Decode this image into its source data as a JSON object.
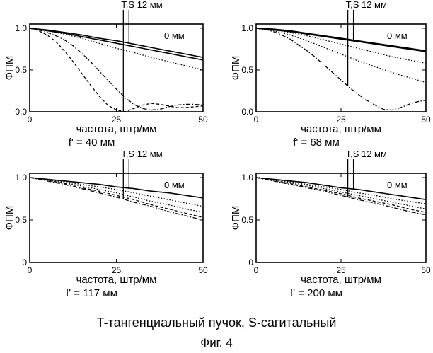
{
  "caption": {
    "legend_text": "T-тангенциальный пучок, S-сагитальный",
    "figure_label": "Фиг. 4"
  },
  "colors": {
    "ink": "#000000",
    "background": "#ffffff"
  },
  "chart_data": [
    {
      "type": "line",
      "focal_label": "f' = 40 мм",
      "xlabel": "частота, штр/мм",
      "ylabel": "ФПМ",
      "xlim": [
        0,
        50
      ],
      "ylim": [
        0,
        1.05
      ],
      "x_ticks": [
        "0",
        "25",
        "50"
      ],
      "y_ticks": [
        "0.0",
        "0.5",
        "1.0"
      ],
      "marker_x": 27,
      "marker_label": "T,S 12 мм",
      "curve_label": "0 мм",
      "grid": false,
      "series": [
        {
          "style": "solid",
          "x": [
            0,
            5,
            10,
            15,
            20,
            25,
            30,
            35,
            40,
            45,
            50
          ],
          "y": [
            1.0,
            0.98,
            0.95,
            0.92,
            0.88,
            0.85,
            0.81,
            0.77,
            0.73,
            0.69,
            0.65
          ]
        },
        {
          "style": "solid",
          "x": [
            0,
            5,
            10,
            15,
            20,
            25,
            30,
            35,
            40,
            45,
            50
          ],
          "y": [
            1.0,
            0.97,
            0.94,
            0.9,
            0.86,
            0.82,
            0.78,
            0.74,
            0.7,
            0.66,
            0.62
          ]
        },
        {
          "style": "dotted",
          "x": [
            0,
            5,
            10,
            15,
            20,
            25,
            30,
            35,
            40,
            45,
            50
          ],
          "y": [
            1.0,
            0.97,
            0.93,
            0.88,
            0.82,
            0.76,
            0.71,
            0.65,
            0.6,
            0.55,
            0.5
          ]
        },
        {
          "style": "dashdot",
          "x": [
            0,
            2.5,
            5,
            7.5,
            10,
            12.5,
            15,
            17.5,
            20,
            22.5,
            25,
            27.5,
            30,
            32.5,
            35,
            37.5,
            40,
            42.5,
            45,
            47.5,
            50
          ],
          "y": [
            1.0,
            0.98,
            0.95,
            0.91,
            0.86,
            0.79,
            0.7,
            0.6,
            0.49,
            0.38,
            0.27,
            0.17,
            0.09,
            0.04,
            0.02,
            0.03,
            0.06,
            0.08,
            0.09,
            0.09,
            0.08
          ]
        },
        {
          "style": "dashed",
          "x": [
            0,
            2.5,
            5,
            7.5,
            10,
            12.5,
            15,
            17.5,
            20,
            22.5,
            25,
            27.5,
            30,
            32.5,
            35,
            37.5,
            40,
            42.5,
            45,
            47.5,
            50
          ],
          "y": [
            1.0,
            0.97,
            0.92,
            0.84,
            0.73,
            0.6,
            0.46,
            0.32,
            0.19,
            0.08,
            0.02,
            0.0,
            0.04,
            0.08,
            0.1,
            0.09,
            0.07,
            0.05,
            0.05,
            0.06,
            0.07
          ]
        }
      ]
    },
    {
      "type": "line",
      "focal_label": "f' = 68 мм",
      "xlabel": "частота, штр/мм",
      "ylabel": "ФПМ",
      "xlim": [
        0,
        50
      ],
      "ylim": [
        0,
        1.05
      ],
      "x_ticks": [
        "0",
        "25",
        "50"
      ],
      "y_ticks": [
        "0.0",
        "0.5",
        "1.0"
      ],
      "marker_x": 27,
      "marker_label": "T,S 12 мм",
      "curve_label": "0 мм",
      "grid": false,
      "series": [
        {
          "style": "solid",
          "x": [
            0,
            5,
            10,
            15,
            20,
            25,
            30,
            35,
            40,
            45,
            50
          ],
          "y": [
            1.0,
            0.99,
            0.97,
            0.94,
            0.91,
            0.88,
            0.85,
            0.82,
            0.79,
            0.76,
            0.73
          ]
        },
        {
          "style": "solid",
          "x": [
            0,
            5,
            10,
            15,
            20,
            25,
            30,
            35,
            40,
            45,
            50
          ],
          "y": [
            1.0,
            0.98,
            0.96,
            0.93,
            0.9,
            0.87,
            0.84,
            0.81,
            0.78,
            0.75,
            0.72
          ]
        },
        {
          "style": "dotted",
          "x": [
            0,
            5,
            10,
            15,
            20,
            25,
            30,
            35,
            40,
            45,
            50
          ],
          "y": [
            1.0,
            0.98,
            0.95,
            0.91,
            0.86,
            0.81,
            0.76,
            0.71,
            0.66,
            0.62,
            0.58
          ]
        },
        {
          "style": "dotted",
          "x": [
            0,
            5,
            10,
            15,
            20,
            25,
            30,
            35,
            40,
            45,
            50
          ],
          "y": [
            1.0,
            0.97,
            0.92,
            0.85,
            0.77,
            0.69,
            0.61,
            0.54,
            0.47,
            0.41,
            0.35
          ]
        },
        {
          "style": "dashdot",
          "x": [
            0,
            2.5,
            5,
            7.5,
            10,
            12.5,
            15,
            17.5,
            20,
            22.5,
            25,
            27.5,
            30,
            32.5,
            35,
            37.5,
            40,
            42.5,
            45,
            47.5,
            50
          ],
          "y": [
            1.0,
            0.99,
            0.96,
            0.92,
            0.87,
            0.8,
            0.73,
            0.65,
            0.56,
            0.47,
            0.38,
            0.29,
            0.21,
            0.14,
            0.08,
            0.03,
            0.02,
            0.05,
            0.09,
            0.12,
            0.14
          ]
        }
      ]
    },
    {
      "type": "line",
      "focal_label": "f' = 117 мм",
      "xlabel": "частота, штр/мм",
      "ylabel": "ФПМ",
      "xlim": [
        0,
        50
      ],
      "ylim": [
        0,
        1.05
      ],
      "x_ticks": [
        "0",
        "25",
        "50"
      ],
      "y_ticks": [
        "0",
        "0.5",
        "1.0"
      ],
      "marker_x": 27,
      "marker_label": "T,S 12 мм",
      "curve_label": "0 мм",
      "grid": false,
      "series": [
        {
          "style": "solid",
          "x": [
            0,
            5,
            10,
            15,
            20,
            25,
            30,
            35,
            40,
            45,
            50
          ],
          "y": [
            1.0,
            0.98,
            0.96,
            0.94,
            0.92,
            0.89,
            0.87,
            0.84,
            0.82,
            0.79,
            0.76
          ]
        },
        {
          "style": "dotted",
          "x": [
            0,
            5,
            10,
            15,
            20,
            25,
            30,
            35,
            40,
            45,
            50
          ],
          "y": [
            1.0,
            0.98,
            0.95,
            0.92,
            0.89,
            0.86,
            0.82,
            0.78,
            0.74,
            0.7,
            0.66
          ]
        },
        {
          "style": "dotted",
          "x": [
            0,
            5,
            10,
            15,
            20,
            25,
            30,
            35,
            40,
            45,
            50
          ],
          "y": [
            1.0,
            0.97,
            0.94,
            0.9,
            0.86,
            0.82,
            0.77,
            0.72,
            0.68,
            0.63,
            0.59
          ]
        },
        {
          "style": "dashed",
          "x": [
            0,
            5,
            10,
            15,
            20,
            25,
            30,
            35,
            40,
            45,
            50
          ],
          "y": [
            1.0,
            0.97,
            0.93,
            0.88,
            0.84,
            0.79,
            0.74,
            0.68,
            0.63,
            0.58,
            0.53
          ]
        },
        {
          "style": "dashdot",
          "x": [
            0,
            5,
            10,
            15,
            20,
            25,
            30,
            35,
            40,
            45,
            50
          ],
          "y": [
            1.0,
            0.96,
            0.92,
            0.87,
            0.82,
            0.77,
            0.71,
            0.66,
            0.6,
            0.55,
            0.5
          ]
        }
      ]
    },
    {
      "type": "line",
      "focal_label": "f' = 200 мм",
      "xlabel": "частота, штр/мм",
      "ylabel": "ФПМ",
      "xlim": [
        0,
        50
      ],
      "ylim": [
        0,
        1.05
      ],
      "x_ticks": [
        "0",
        "25",
        "50"
      ],
      "y_ticks": [
        "0",
        "0.5",
        "1.0"
      ],
      "marker_x": 27,
      "marker_label": "T,S 12 мм",
      "curve_label": "0 мм",
      "grid": false,
      "series": [
        {
          "style": "solid",
          "x": [
            0,
            5,
            10,
            15,
            20,
            25,
            30,
            35,
            40,
            45,
            50
          ],
          "y": [
            1.0,
            0.98,
            0.96,
            0.94,
            0.91,
            0.88,
            0.86,
            0.83,
            0.8,
            0.77,
            0.74
          ]
        },
        {
          "style": "dotted",
          "x": [
            0,
            5,
            10,
            15,
            20,
            25,
            30,
            35,
            40,
            45,
            50
          ],
          "y": [
            1.0,
            0.98,
            0.95,
            0.92,
            0.89,
            0.86,
            0.82,
            0.79,
            0.75,
            0.72,
            0.69
          ]
        },
        {
          "style": "dotted",
          "x": [
            0,
            5,
            10,
            15,
            20,
            25,
            30,
            35,
            40,
            45,
            50
          ],
          "y": [
            1.0,
            0.97,
            0.94,
            0.91,
            0.87,
            0.83,
            0.79,
            0.75,
            0.71,
            0.67,
            0.63
          ]
        },
        {
          "style": "dashed",
          "x": [
            0,
            5,
            10,
            15,
            20,
            25,
            30,
            35,
            40,
            45,
            50
          ],
          "y": [
            1.0,
            0.97,
            0.93,
            0.89,
            0.85,
            0.81,
            0.76,
            0.72,
            0.68,
            0.63,
            0.59
          ]
        },
        {
          "style": "dashdot",
          "x": [
            0,
            5,
            10,
            15,
            20,
            25,
            30,
            35,
            40,
            45,
            50
          ],
          "y": [
            1.0,
            0.96,
            0.92,
            0.88,
            0.84,
            0.79,
            0.74,
            0.7,
            0.65,
            0.6,
            0.56
          ]
        }
      ]
    }
  ]
}
